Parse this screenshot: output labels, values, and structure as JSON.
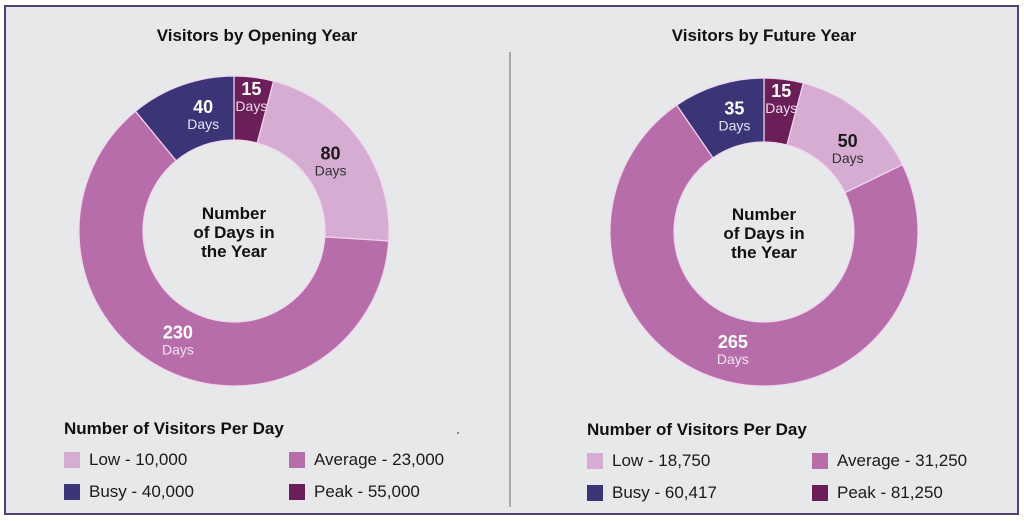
{
  "colors": {
    "low": "#d6acd2",
    "average": "#b86dab",
    "busy": "#3b3578",
    "peak": "#6a1f58",
    "frame_border": "#4a4577",
    "background": "#e7e8ea"
  },
  "chart_data": [
    {
      "type": "pie",
      "variant": "donut",
      "title": "Visitors by Opening Year",
      "center_label": [
        "Number",
        "of Days in",
        "the Year"
      ],
      "unit_label": "Days",
      "slices": [
        {
          "key": "peak",
          "label": "Peak",
          "value": 15
        },
        {
          "key": "low",
          "label": "Low",
          "value": 80
        },
        {
          "key": "average",
          "label": "Average",
          "value": 230
        },
        {
          "key": "busy",
          "label": "Busy",
          "value": 40
        }
      ],
      "legend": {
        "title": "Number of Visitors Per Day",
        "placement": "bottom",
        "items": [
          {
            "key": "low",
            "text": "Low - 10,000",
            "visitors": 10000
          },
          {
            "key": "average",
            "text": "Average - 23,000",
            "visitors": 23000
          },
          {
            "key": "busy",
            "text": "Busy - 40,000",
            "visitors": 40000
          },
          {
            "key": "peak",
            "text": "Peak - 55,000",
            "visitors": 55000
          }
        ]
      }
    },
    {
      "type": "pie",
      "variant": "donut",
      "title": "Visitors by Future Year",
      "center_label": [
        "Number",
        "of Days in",
        "the Year"
      ],
      "unit_label": "Days",
      "slices": [
        {
          "key": "peak",
          "label": "Peak",
          "value": 15
        },
        {
          "key": "low",
          "label": "Low",
          "value": 50
        },
        {
          "key": "average",
          "label": "Average",
          "value": 265
        },
        {
          "key": "busy",
          "label": "Busy",
          "value": 35
        }
      ],
      "legend": {
        "title": "Number of Visitors Per Day",
        "placement": "bottom",
        "items": [
          {
            "key": "low",
            "text": "Low - 18,750",
            "visitors": 18750
          },
          {
            "key": "average",
            "text": "Average - 31,250",
            "visitors": 31250
          },
          {
            "key": "busy",
            "text": "Busy - 60,417",
            "visitors": 60417
          },
          {
            "key": "peak",
            "text": "Peak - 81,250",
            "visitors": 81250
          }
        ]
      }
    }
  ]
}
